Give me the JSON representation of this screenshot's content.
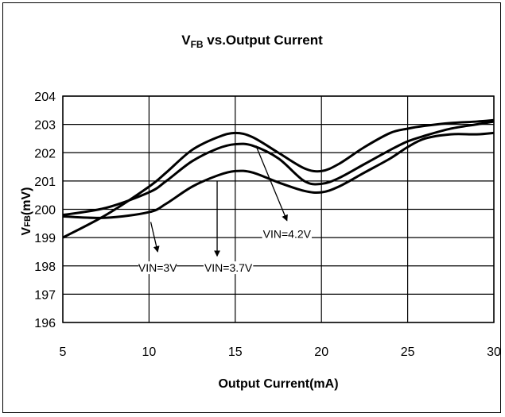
{
  "chart_data": {
    "type": "line",
    "title": {
      "main": "V",
      "sub": "FB",
      "rest": " vs.Output Current"
    },
    "xlabel": "Output Current(mA)",
    "ylabel": {
      "main": "V",
      "sub": "FB",
      "rest": "(mV)"
    },
    "xlim": [
      5,
      30
    ],
    "ylim": [
      196,
      204
    ],
    "x_ticks": [
      "5",
      "10",
      "15",
      "20",
      "25",
      "30"
    ],
    "y_ticks": [
      "196",
      "197",
      "198",
      "199",
      "200",
      "201",
      "202",
      "203",
      "204"
    ],
    "grid": true,
    "series": [
      {
        "name": "VIN=3V",
        "x": [
          5,
          7.5,
          10,
          11,
          12.5,
          14,
          15,
          16,
          17.5,
          19,
          20,
          21,
          22.5,
          24,
          25,
          26,
          27.5,
          29,
          30
        ],
        "y": [
          199.75,
          199.7,
          199.9,
          200.2,
          200.8,
          201.2,
          201.35,
          201.3,
          200.95,
          200.65,
          200.6,
          200.8,
          201.3,
          201.8,
          202.2,
          202.5,
          202.65,
          202.65,
          202.7
        ]
      },
      {
        "name": "VIN=3.7V",
        "x": [
          5,
          7.5,
          10,
          11,
          12.5,
          14,
          15,
          16,
          17.5,
          19,
          20,
          21,
          22.5,
          24,
          25,
          26,
          27.5,
          29,
          30
        ],
        "y": [
          199.8,
          200.05,
          200.6,
          201.0,
          201.7,
          202.15,
          202.3,
          202.25,
          201.8,
          201.0,
          200.9,
          201.1,
          201.6,
          202.1,
          202.4,
          202.6,
          202.85,
          203.0,
          203.1
        ]
      },
      {
        "name": "VIN=4.2V",
        "x": [
          5,
          7.5,
          10,
          11,
          12.5,
          14,
          15,
          16,
          17.5,
          19,
          20,
          21,
          22.5,
          24,
          25,
          26,
          27.5,
          29,
          30
        ],
        "y": [
          199.0,
          199.8,
          200.8,
          201.3,
          202.1,
          202.55,
          202.7,
          202.55,
          202.0,
          201.45,
          201.35,
          201.6,
          202.2,
          202.7,
          202.85,
          202.95,
          203.05,
          203.1,
          203.15
        ]
      }
    ],
    "annotations": [
      {
        "text": "VIN=3V",
        "from": [
          10.1,
          199.55
        ],
        "to": [
          10.5,
          198.5
        ],
        "label_at": [
          10.5,
          197.85
        ]
      },
      {
        "text": "VIN=3.7V",
        "from": [
          13.95,
          201.0
        ],
        "to": [
          13.95,
          198.35
        ],
        "label_at": [
          14.6,
          197.85
        ]
      },
      {
        "text": "VIN=4.2V",
        "from": [
          16.2,
          202.25
        ],
        "to": [
          18.0,
          199.6
        ],
        "label_at": [
          18.0,
          199.05
        ]
      }
    ]
  }
}
